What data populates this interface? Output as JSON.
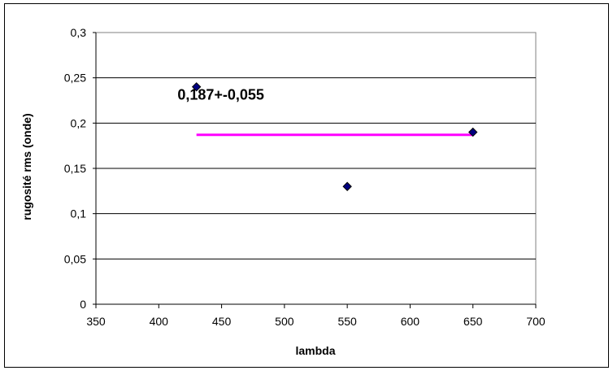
{
  "chart_data": {
    "type": "scatter",
    "title": "",
    "xlabel": "lambda",
    "ylabel": "rugosité rms (onde)",
    "xlim": [
      350,
      700
    ],
    "ylim": [
      0,
      0.3
    ],
    "grid": "horizontal major gridlines",
    "legend": "none",
    "x_ticks": [
      "350",
      "400",
      "450",
      "500",
      "550",
      "600",
      "650",
      "700"
    ],
    "y_ticks": [
      "0",
      "0,05",
      "0,1",
      "0,15",
      "0,2",
      "0,25",
      "0,3"
    ],
    "series": [
      {
        "type": "scatter",
        "marker": "diamond",
        "color": "#000080",
        "points": [
          {
            "x": 430,
            "y": 0.24
          },
          {
            "x": 550,
            "y": 0.13
          },
          {
            "x": 650,
            "y": 0.19
          }
        ]
      },
      {
        "type": "line",
        "color": "#ff00ff",
        "points": [
          {
            "x": 430,
            "y": 0.187
          },
          {
            "x": 650,
            "y": 0.187
          }
        ]
      }
    ],
    "annotations": [
      {
        "text": "0,187+-0,055",
        "x": 510,
        "y": 0.235
      }
    ]
  }
}
